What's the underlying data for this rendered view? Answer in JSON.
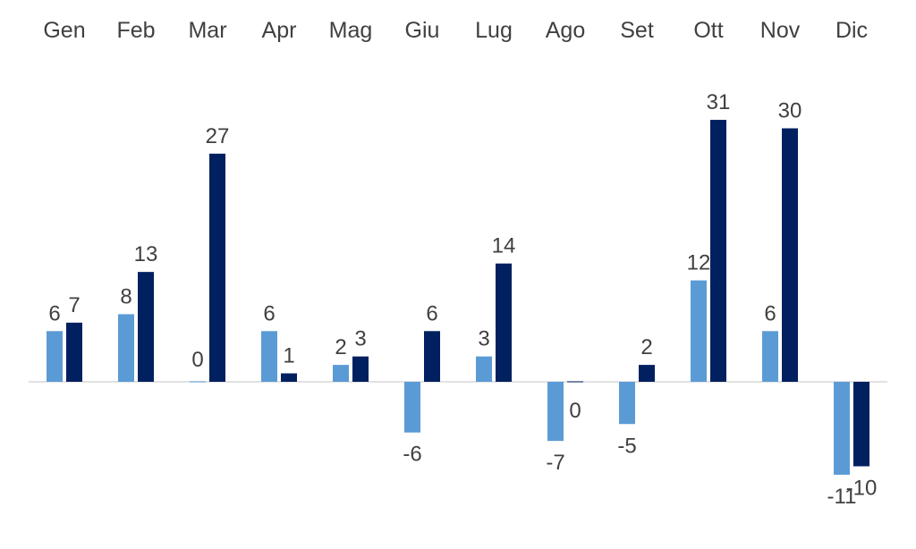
{
  "chart_data": {
    "type": "bar",
    "title": "",
    "xlabel": "",
    "ylabel": "",
    "categories": [
      "Gen",
      "Feb",
      "Mar",
      "Apr",
      "Mag",
      "Giu",
      "Lug",
      "Ago",
      "Set",
      "Ott",
      "Nov",
      "Dic"
    ],
    "series": [
      {
        "values": [
          6,
          8,
          0,
          6,
          2,
          -6,
          3,
          -7,
          -5,
          12,
          6,
          -11
        ],
        "color": "#5b9bd5"
      },
      {
        "values": [
          7,
          13,
          27,
          1,
          3,
          6,
          14,
          0,
          2,
          31,
          30,
          -10
        ],
        "color": "#002060"
      }
    ],
    "ylim": [
      -14,
      34
    ],
    "axis_line_color": "#d9d9d9",
    "text_color": "#404040",
    "grid": false,
    "legend": "none",
    "category_axis_position": "top"
  }
}
